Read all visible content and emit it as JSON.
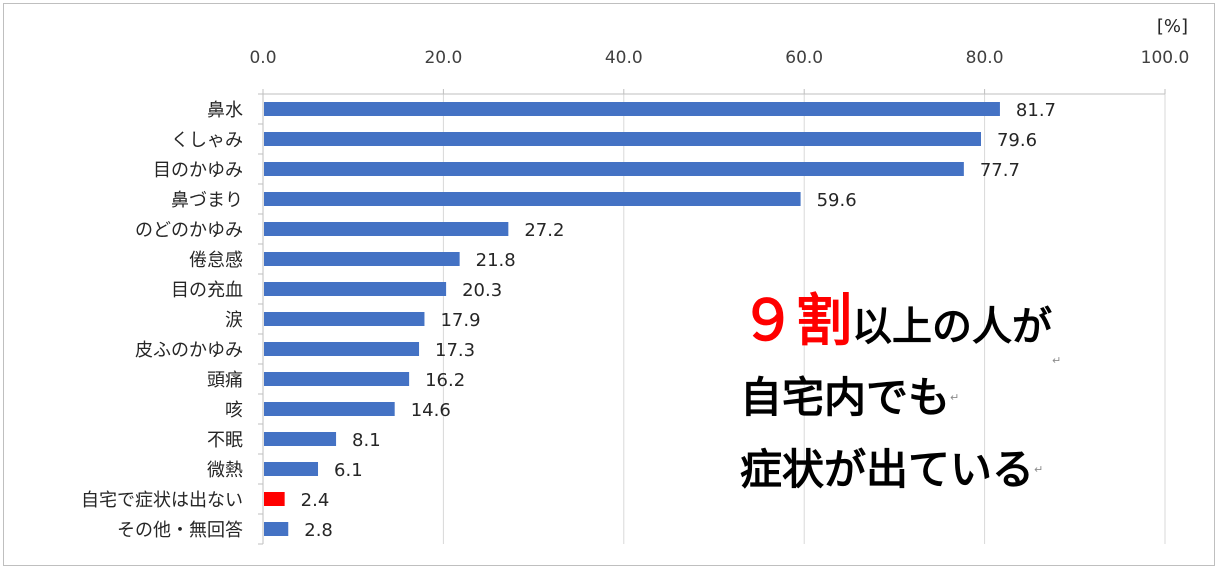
{
  "chart_data": {
    "type": "bar",
    "orientation": "horizontal",
    "unit_label": "[%]",
    "xlim": [
      0,
      100
    ],
    "ticks": [
      "0.0",
      "20.0",
      "40.0",
      "60.0",
      "80.0",
      "100.0"
    ],
    "tick_values": [
      0,
      20,
      40,
      60,
      80,
      100
    ],
    "categories": [
      "鼻水",
      "くしゃみ",
      "目のかゆみ",
      "鼻づまり",
      "のどのかゆみ",
      "倦怠感",
      "目の充血",
      "涙",
      "皮ふのかゆみ",
      "頭痛",
      "咳",
      "不眠",
      "微熱",
      "自宅で症状は出ない",
      "その他・無回答"
    ],
    "values": [
      81.7,
      79.6,
      77.7,
      59.6,
      27.2,
      21.8,
      20.3,
      17.9,
      17.3,
      16.2,
      14.6,
      8.1,
      6.1,
      2.4,
      2.8
    ],
    "value_labels": [
      "81.7",
      "79.6",
      "77.7",
      "59.6",
      "27.2",
      "21.8",
      "20.3",
      "17.9",
      "17.3",
      "16.2",
      "14.6",
      "8.1",
      "6.1",
      "2.4",
      "2.8"
    ],
    "bar_color": "#4472c4",
    "highlight_color": "#ff0000",
    "highlight_index": 13,
    "grid": true,
    "legend": "none"
  },
  "callout": {
    "highlight": "９割",
    "line1_rest": "以上の人が",
    "line2": "自宅内でも",
    "line3": "症状が出ている",
    "return_mark": "↵",
    "highlight_color": "#ff0000"
  }
}
